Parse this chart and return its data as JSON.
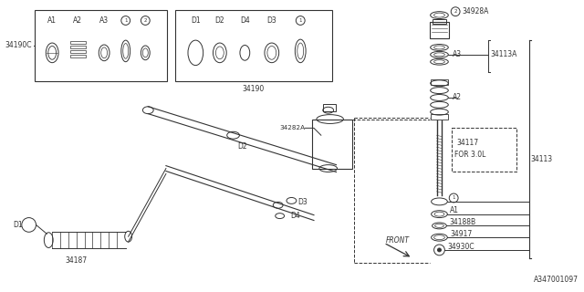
{
  "bg_color": "#ffffff",
  "line_color": "#333333",
  "title": "A347001097",
  "box1_label": "34190C",
  "box2_label": "34190",
  "inset1_labels": [
    "A1",
    "A2",
    "A3",
    "1",
    "2"
  ],
  "inset2_labels": [
    "D1",
    "D2",
    "D4",
    "D3",
    "1"
  ],
  "front_label": "FRONT",
  "part_labels_left": [
    "34187",
    "34282A",
    "D1",
    "D2",
    "D3",
    "D4"
  ],
  "part_labels_right": [
    "34928A",
    "34113A",
    "A3",
    "A2",
    "34117",
    "FOR 3.0L",
    "34113",
    "34188B",
    "34917",
    "34930C",
    "A1"
  ]
}
